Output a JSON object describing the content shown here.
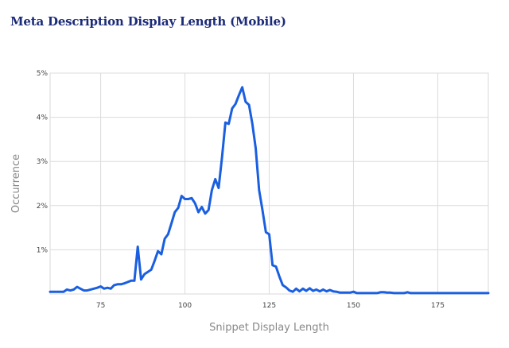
{
  "chart_data": {
    "type": "line",
    "title": "Meta Description Display Length (Mobile)",
    "xlabel": "Snippet Display Length",
    "ylabel": "Occurrence",
    "xlim": [
      60,
      190
    ],
    "ylim": [
      0,
      5
    ],
    "x_ticks": [
      75,
      100,
      125,
      150,
      175
    ],
    "y_ticks": [
      1,
      2,
      3,
      4,
      5
    ],
    "y_tick_suffix": "%",
    "grid": true,
    "series": [
      {
        "color": "#1a5fe0",
        "x": [
          60,
          61,
          62,
          63,
          64,
          65,
          66,
          67,
          68,
          69,
          70,
          71,
          72,
          73,
          74,
          75,
          76,
          77,
          78,
          79,
          80,
          81,
          82,
          83,
          84,
          85,
          86,
          87,
          88,
          89,
          90,
          91,
          92,
          93,
          94,
          95,
          96,
          97,
          98,
          99,
          100,
          101,
          102,
          103,
          104,
          105,
          106,
          107,
          108,
          109,
          110,
          111,
          112,
          113,
          114,
          115,
          116,
          117,
          118,
          119,
          120,
          121,
          122,
          123,
          124,
          125,
          126,
          127,
          128,
          129,
          130,
          131,
          132,
          133,
          134,
          135,
          136,
          137,
          138,
          139,
          140,
          141,
          142,
          143,
          144,
          145,
          146,
          147,
          148,
          149,
          150,
          151,
          152,
          153,
          154,
          155,
          156,
          157,
          158,
          159,
          160,
          161,
          162,
          163,
          164,
          165,
          166,
          167,
          168,
          169,
          170,
          171,
          172,
          173,
          174,
          175,
          176,
          177,
          178,
          179,
          180,
          181,
          182,
          183,
          184,
          185,
          186,
          187,
          188,
          189,
          190
        ],
        "y": [
          0.05,
          0.05,
          0.05,
          0.05,
          0.05,
          0.1,
          0.08,
          0.1,
          0.16,
          0.12,
          0.08,
          0.08,
          0.1,
          0.12,
          0.14,
          0.17,
          0.12,
          0.14,
          0.12,
          0.2,
          0.22,
          0.22,
          0.24,
          0.27,
          0.3,
          0.3,
          1.07,
          0.33,
          0.45,
          0.5,
          0.55,
          0.75,
          0.97,
          0.9,
          1.25,
          1.35,
          1.6,
          1.85,
          1.95,
          2.22,
          2.15,
          2.15,
          2.17,
          2.05,
          1.85,
          1.97,
          1.82,
          1.9,
          2.35,
          2.6,
          2.4,
          3.1,
          3.88,
          3.85,
          4.2,
          4.3,
          4.5,
          4.68,
          4.35,
          4.28,
          3.85,
          3.3,
          2.35,
          1.9,
          1.4,
          1.35,
          0.65,
          0.62,
          0.4,
          0.2,
          0.15,
          0.08,
          0.05,
          0.12,
          0.06,
          0.12,
          0.07,
          0.13,
          0.07,
          0.1,
          0.06,
          0.1,
          0.06,
          0.09,
          0.06,
          0.05,
          0.03,
          0.03,
          0.03,
          0.03,
          0.05,
          0.02,
          0.02,
          0.02,
          0.02,
          0.02,
          0.02,
          0.02,
          0.04,
          0.04,
          0.03,
          0.03,
          0.02,
          0.02,
          0.02,
          0.02,
          0.04,
          0.02,
          0.02,
          0.02,
          0.02,
          0.02,
          0.02,
          0.02,
          0.02,
          0.02,
          0.02,
          0.02,
          0.02,
          0.02,
          0.02,
          0.02,
          0.02,
          0.02,
          0.02,
          0.02,
          0.02,
          0.02,
          0.02,
          0.02,
          0.02
        ]
      }
    ]
  }
}
